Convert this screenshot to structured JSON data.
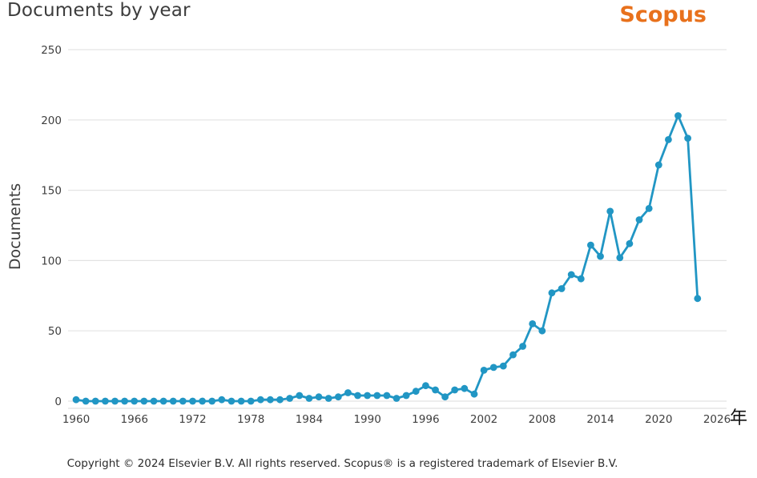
{
  "header": {
    "title": "Documents by year",
    "logo_text": "Scopus"
  },
  "footer": {
    "copyright": "Copyright © 2024 Elsevier B.V. All rights reserved. Scopus® is a registered trademark of Elsevier B.V."
  },
  "colors": {
    "line": "#2196c4",
    "logo_orange": "#e8711c",
    "grid": "#e3e3e3",
    "axis_text": "#3f3f3f"
  },
  "chart_data": {
    "type": "line",
    "title": "Documents by year",
    "ylabel": "Documents",
    "x_unit_suffix": "年",
    "legend_position": "none",
    "grid": "horizontal",
    "xlim": [
      1960,
      2026
    ],
    "ylim": [
      0,
      250
    ],
    "x_ticks": [
      1960,
      1966,
      1972,
      1978,
      1984,
      1990,
      1996,
      2002,
      2008,
      2014,
      2020,
      2026
    ],
    "y_ticks": [
      0,
      50,
      100,
      150,
      200,
      250
    ],
    "series": [
      {
        "name": "Documents",
        "x": [
          1960,
          1961,
          1962,
          1963,
          1964,
          1965,
          1966,
          1967,
          1968,
          1969,
          1970,
          1971,
          1972,
          1973,
          1974,
          1975,
          1976,
          1977,
          1978,
          1979,
          1980,
          1981,
          1982,
          1983,
          1984,
          1985,
          1986,
          1987,
          1988,
          1989,
          1990,
          1991,
          1992,
          1993,
          1994,
          1995,
          1996,
          1997,
          1998,
          1999,
          2000,
          2001,
          2002,
          2003,
          2004,
          2005,
          2006,
          2007,
          2008,
          2009,
          2010,
          2011,
          2012,
          2013,
          2014,
          2015,
          2016,
          2017,
          2018,
          2019,
          2020,
          2021,
          2022,
          2023,
          2024
        ],
        "values": [
          1,
          0,
          0,
          0,
          0,
          0,
          0,
          0,
          0,
          0,
          0,
          0,
          0,
          0,
          0,
          1,
          0,
          0,
          0,
          1,
          1,
          1,
          2,
          4,
          2,
          3,
          2,
          3,
          6,
          4,
          4,
          4,
          4,
          2,
          4,
          7,
          11,
          8,
          3,
          8,
          9,
          5,
          22,
          24,
          25,
          33,
          39,
          55,
          50,
          77,
          80,
          90,
          87,
          111,
          103,
          135,
          102,
          112,
          129,
          137,
          168,
          186,
          203,
          187,
          73
        ]
      }
    ]
  }
}
